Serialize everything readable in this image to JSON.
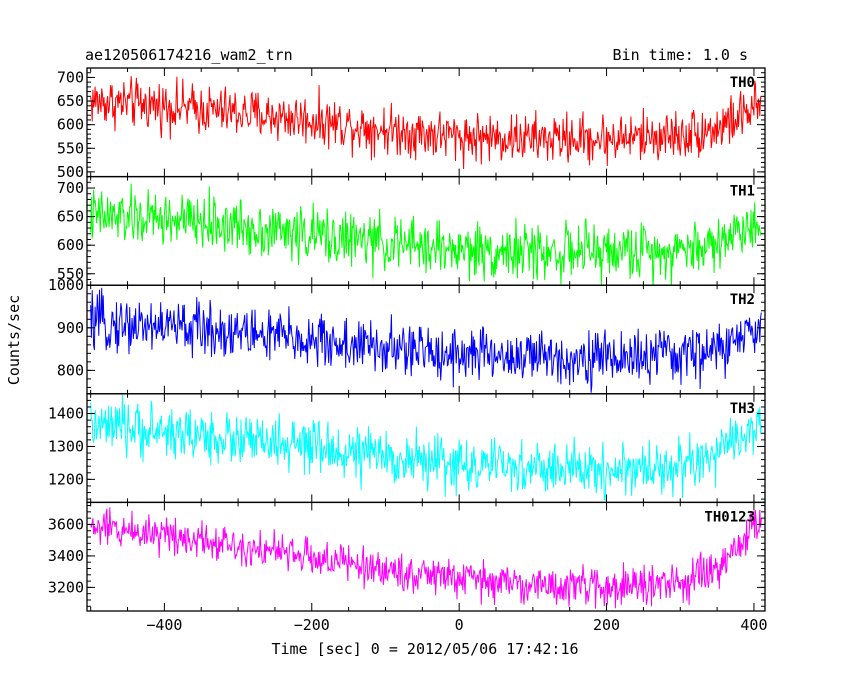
{
  "chart_data": {
    "type": "line",
    "title": "ae120506174216_wam2_trn",
    "subtitle": "Bin time: 1.0 s",
    "xlabel": "Time [sec] 0 = 2012/05/06 17:42:16",
    "ylabel": "Counts/sec",
    "xlim": [
      -505,
      415
    ],
    "x_ticks": [
      -400,
      -200,
      0,
      200,
      400
    ],
    "x_tick_labels": [
      "−400",
      "−200",
      "0",
      "200",
      "400"
    ],
    "x_step": 1,
    "grid": false,
    "panels": [
      {
        "name": "TH0",
        "color": "#ff0000",
        "ylim": [
          490,
          720
        ],
        "y_ticks": [
          500,
          550,
          600,
          650,
          700
        ],
        "y_tick_labels": [
          "500",
          "550",
          "600",
          "650",
          "700"
        ],
        "trend_x": [
          -500,
          -400,
          -300,
          -200,
          -100,
          0,
          100,
          200,
          300,
          350,
          410
        ],
        "trend_y": [
          650,
          640,
          625,
          610,
          590,
          575,
          570,
          570,
          578,
          592,
          640
        ],
        "noise": 26
      },
      {
        "name": "TH1",
        "color": "#00ff00",
        "ylim": [
          530,
          720
        ],
        "y_ticks": [
          550,
          600,
          650,
          700
        ],
        "y_tick_labels": [
          "550",
          "600",
          "650",
          "700"
        ],
        "trend_x": [
          -500,
          -400,
          -300,
          -200,
          -100,
          0,
          100,
          200,
          300,
          350,
          410
        ],
        "trend_y": [
          650,
          645,
          633,
          618,
          603,
          592,
          588,
          588,
          592,
          603,
          648
        ],
        "noise": 24
      },
      {
        "name": "TH2",
        "color": "#0000ff",
        "ylim": [
          745,
          1000
        ],
        "y_ticks": [
          800,
          900,
          1000
        ],
        "y_tick_labels": [
          "800",
          "900",
          "1000"
        ],
        "trend_x": [
          -500,
          -400,
          -300,
          -200,
          -100,
          0,
          100,
          200,
          300,
          350,
          410
        ],
        "trend_y": [
          910,
          905,
          890,
          870,
          850,
          840,
          830,
          830,
          835,
          848,
          895
        ],
        "noise": 32
      },
      {
        "name": "TH3",
        "color": "#00ffff",
        "ylim": [
          1130,
          1460
        ],
        "y_ticks": [
          1200,
          1300,
          1400
        ],
        "y_tick_labels": [
          "1200",
          "1300",
          "1400"
        ],
        "trend_x": [
          -500,
          -400,
          -300,
          -200,
          -100,
          0,
          100,
          200,
          300,
          350,
          410
        ],
        "trend_y": [
          1360,
          1345,
          1320,
          1295,
          1268,
          1245,
          1232,
          1228,
          1240,
          1268,
          1380
        ],
        "noise": 40
      },
      {
        "name": "TH0123",
        "color": "#ff00ff",
        "ylim": [
          3050,
          3740
        ],
        "y_ticks": [
          3200,
          3400,
          3600
        ],
        "y_tick_labels": [
          "3200",
          "3400",
          "3600"
        ],
        "trend_x": [
          -500,
          -400,
          -300,
          -200,
          -100,
          0,
          100,
          200,
          300,
          350,
          410
        ],
        "trend_y": [
          3580,
          3545,
          3470,
          3390,
          3310,
          3255,
          3215,
          3200,
          3225,
          3300,
          3640
        ],
        "noise": 60
      }
    ]
  }
}
